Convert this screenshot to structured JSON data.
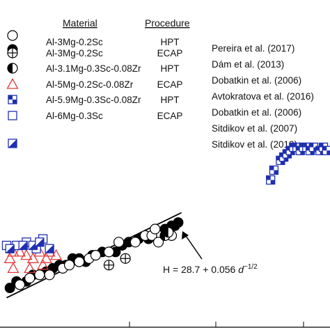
{
  "chart_data": {
    "type": "scatter",
    "title": "",
    "xlabel": "",
    "ylabel": "",
    "xlim": [
      0,
      100
    ],
    "ylim": [
      0,
      100
    ],
    "grid": false,
    "legend_placement": "top-left",
    "legend": {
      "headers": {
        "material": "Material",
        "procedure": "Procedure"
      },
      "rows": [
        {
          "material": "Al-3Mg-0.2Sc",
          "procedure": "HPT",
          "reference": "Pereira et al. (2017)",
          "markers": [
            "open-circle",
            "filled-circle"
          ]
        },
        {
          "material": "Al-3Mg-0.2Sc",
          "procedure": "ECAP",
          "reference": "Dám et al. (2013)",
          "markers": [
            "crossed-circle"
          ]
        },
        {
          "material": "Al-3.1Mg-0.3Sc-0.08Zr",
          "procedure": "HPT",
          "reference": "Dobatkin et al. (2006)",
          "markers": [
            "half-filled-circle"
          ]
        },
        {
          "material": "Al-5Mg-0.2Sc-0.08Zr",
          "procedure": "ECAP",
          "reference": "Avtokratova et al. (2016)",
          "markers": [
            "open-triangle"
          ]
        },
        {
          "material": "Al-5.9Mg-0.3Sc-0.08Zr",
          "procedure": "HPT",
          "reference": "Dobatkin et al. (2006)",
          "markers": [
            "checker-square"
          ]
        },
        {
          "material": "Al-6Mg-0.3Sc",
          "procedure": "ECAP",
          "reference": "Sitdikov et al. (2007)",
          "markers": [
            "open-square"
          ]
        },
        {
          "material": "",
          "procedure": "",
          "reference": "Sitdikov et al. (2013)",
          "markers": [
            "diag-square"
          ]
        }
      ]
    },
    "annotation": {
      "equation_prefix": "H = 28.7 + 0.056 ",
      "equation_var": "d",
      "equation_exp": "−1/2"
    },
    "fit_line": {
      "x": [
        2,
        55
      ],
      "y": [
        9,
        35
      ]
    },
    "series": [
      {
        "marker": "filled-circle",
        "x": [
          3,
          5,
          8,
          10,
          12,
          14,
          16,
          18,
          20,
          22,
          24,
          26,
          28,
          31,
          35,
          37,
          39,
          42,
          45,
          50,
          52,
          53,
          54
        ],
        "y": [
          12,
          14,
          14,
          16,
          16,
          17,
          18,
          19,
          19,
          21,
          21,
          20,
          22,
          23,
          23,
          25,
          26,
          27,
          27,
          30,
          31,
          31,
          32
        ]
      },
      {
        "marker": "open-circle",
        "x": [
          6,
          9,
          12,
          15,
          19,
          21,
          24,
          27,
          29,
          33,
          36,
          41,
          44,
          46,
          47,
          48,
          52
        ],
        "y": [
          13,
          15,
          16,
          16,
          18,
          19,
          20,
          21,
          22,
          23,
          26,
          26,
          28,
          28,
          30,
          26,
          28
        ]
      },
      {
        "marker": "crossed-circle",
        "x": [
          33,
          38
        ],
        "y": [
          19,
          21
        ]
      },
      {
        "marker": "half-filled-circle",
        "x": [
          50,
          51
        ],
        "y": [
          28,
          29
        ]
      },
      {
        "marker": "open-triangle",
        "x": [
          3,
          4,
          6,
          8,
          10,
          12,
          14,
          15,
          17,
          4,
          9,
          13
        ],
        "y": [
          21,
          23,
          23,
          22,
          21,
          23,
          21,
          23,
          22,
          18,
          18,
          19
        ]
      },
      {
        "marker": "open-square",
        "x": [
          2,
          5,
          8,
          11,
          13
        ],
        "y": [
          25,
          25,
          26,
          24,
          27
        ]
      },
      {
        "marker": "diag-square",
        "x": [
          3,
          7,
          10,
          12,
          15
        ],
        "y": [
          24,
          25,
          25,
          26,
          24
        ]
      },
      {
        "marker": "checker-square",
        "x": [
          82,
          83,
          85,
          86,
          87,
          88,
          89,
          90,
          91,
          92,
          93,
          94,
          95,
          97,
          98,
          99
        ],
        "y": [
          45,
          48,
          51,
          52,
          53,
          54,
          55,
          55,
          54,
          55,
          55,
          54,
          55,
          54,
          55,
          54
        ]
      }
    ]
  }
}
